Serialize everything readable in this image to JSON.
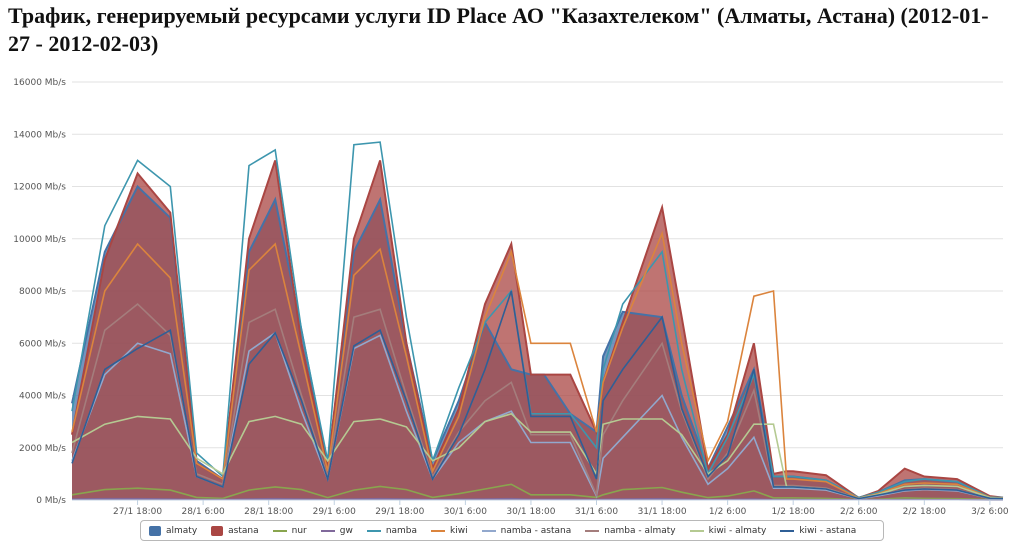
{
  "title": "Трафик, генерируемый ресурсами услуги ID Place АО \"Казахтелеком\" (Алматы, Астана) (2012-01-27 - 2012-02-03)",
  "chart_data": {
    "type": "area",
    "unit": "Mb/s",
    "ylim": [
      0,
      16000
    ],
    "yticks": [
      "0 Mb/s",
      "2000 Mb/s",
      "4000 Mb/s",
      "6000 Mb/s",
      "8000 Mb/s",
      "10000 Mb/s",
      "12000 Mb/s",
      "14000 Mb/s",
      "16000 Mb/s"
    ],
    "xlim": [
      0,
      14.2
    ],
    "xticks": [
      {
        "x": 1.0,
        "label": "27/1 18:00"
      },
      {
        "x": 2.0,
        "label": "28/1 6:00"
      },
      {
        "x": 3.0,
        "label": "28/1 18:00"
      },
      {
        "x": 4.0,
        "label": "29/1 6:00"
      },
      {
        "x": 5.0,
        "label": "29/1 18:00"
      },
      {
        "x": 6.0,
        "label": "30/1 6:00"
      },
      {
        "x": 7.0,
        "label": "30/1 18:00"
      },
      {
        "x": 8.0,
        "label": "31/1 6:00"
      },
      {
        "x": 9.0,
        "label": "31/1 18:00"
      },
      {
        "x": 10.0,
        "label": "1/2 6:00"
      },
      {
        "x": 11.0,
        "label": "1/2 18:00"
      },
      {
        "x": 12.0,
        "label": "2/2 6:00"
      },
      {
        "x": 13.0,
        "label": "2/2 18:00"
      },
      {
        "x": 14.0,
        "label": "3/2 6:00"
      }
    ],
    "grid": true,
    "legend_position": "bottom",
    "x": [
      0.0,
      0.5,
      1.0,
      1.5,
      1.9,
      2.3,
      2.7,
      3.1,
      3.5,
      3.9,
      4.3,
      4.7,
      5.1,
      5.5,
      5.9,
      6.3,
      6.7,
      7.0,
      7.2,
      7.6,
      8.0,
      8.1,
      8.4,
      9.0,
      9.3,
      9.7,
      10.0,
      10.4,
      10.7,
      10.9,
      11.0,
      11.5,
      12.0,
      12.3,
      12.7,
      13.0,
      13.5,
      14.0,
      14.2
    ],
    "series": [
      {
        "name": "almaty",
        "kind": "area",
        "color": "#4572a7",
        "values": [
          3700,
          9500,
          12000,
          10800,
          1500,
          800,
          9500,
          11500,
          6500,
          1300,
          9500,
          11500,
          6000,
          1500,
          3800,
          6800,
          5000,
          4800,
          4800,
          3300,
          2600,
          5500,
          7200,
          7000,
          4000,
          1200,
          2800,
          5000,
          900,
          900,
          900,
          750,
          90,
          300,
          750,
          800,
          700,
          120,
          90
        ]
      },
      {
        "name": "astana",
        "kind": "area",
        "color": "#aa4643",
        "values": [
          2500,
          9200,
          12500,
          11000,
          1400,
          800,
          10000,
          13000,
          6000,
          1200,
          10000,
          13000,
          6000,
          1200,
          3500,
          7500,
          9800,
          4800,
          4800,
          4800,
          2600,
          4500,
          6800,
          11200,
          7000,
          1200,
          2500,
          6000,
          1000,
          1100,
          1100,
          950,
          80,
          350,
          1200,
          900,
          800,
          150,
          90
        ]
      },
      {
        "name": "nur",
        "kind": "line",
        "color": "#89a54e",
        "values": [
          200,
          400,
          450,
          380,
          100,
          60,
          380,
          500,
          400,
          90,
          380,
          520,
          400,
          100,
          240,
          420,
          600,
          200,
          200,
          200,
          100,
          200,
          400,
          480,
          300,
          90,
          150,
          350,
          80,
          80,
          80,
          60,
          20,
          30,
          80,
          60,
          50,
          20,
          20
        ]
      },
      {
        "name": "gw",
        "kind": "line",
        "color": "#80699b",
        "values": [
          30,
          50,
          50,
          40,
          20,
          15,
          40,
          50,
          40,
          15,
          40,
          50,
          40,
          15,
          25,
          40,
          50,
          25,
          25,
          25,
          15,
          25,
          40,
          50,
          30,
          15,
          20,
          40,
          15,
          15,
          15,
          10,
          10,
          10,
          15,
          10,
          10,
          5,
          5
        ]
      },
      {
        "name": "namba",
        "kind": "line",
        "color": "#3d96ae",
        "values": [
          3400,
          10500,
          13000,
          12000,
          1800,
          900,
          12800,
          13400,
          6500,
          1500,
          13600,
          13700,
          7000,
          1500,
          4300,
          6800,
          8000,
          3300,
          3300,
          3300,
          2000,
          5000,
          7500,
          9500,
          5000,
          1000,
          2400,
          4800,
          900,
          900,
          900,
          750,
          90,
          300,
          700,
          800,
          700,
          110,
          90
        ]
      },
      {
        "name": "kiwi",
        "kind": "line",
        "color": "#db843d",
        "values": [
          2600,
          8000,
          9800,
          8500,
          1400,
          800,
          8800,
          9800,
          5500,
          1100,
          8600,
          9600,
          5500,
          1100,
          3200,
          7000,
          9500,
          6000,
          6000,
          6000,
          2600,
          4500,
          6600,
          10200,
          6000,
          1500,
          3000,
          7800,
          8000,
          800,
          800,
          700,
          70,
          250,
          600,
          650,
          600,
          100,
          80
        ]
      },
      {
        "name": "namba - astana",
        "kind": "line",
        "color": "#92a8cd",
        "values": [
          1500,
          4800,
          6000,
          5600,
          900,
          500,
          5700,
          6400,
          3400,
          800,
          5800,
          6300,
          3400,
          800,
          2200,
          3000,
          3400,
          2200,
          2200,
          2200,
          150,
          1600,
          2400,
          4000,
          2400,
          600,
          1200,
          2400,
          450,
          450,
          450,
          380,
          50,
          160,
          350,
          400,
          350,
          60,
          50
        ]
      },
      {
        "name": "namba - almaty",
        "kind": "line",
        "color": "#a47d7c",
        "values": [
          1800,
          6500,
          7500,
          6300,
          1000,
          600,
          6800,
          7300,
          4000,
          900,
          7000,
          7300,
          4000,
          900,
          2600,
          3800,
          4500,
          2500,
          2500,
          2500,
          200,
          2500,
          3800,
          6000,
          3400,
          800,
          1800,
          4200,
          550,
          550,
          550,
          460,
          60,
          200,
          400,
          450,
          400,
          70,
          60
        ]
      },
      {
        "name": "kiwi - almaty",
        "kind": "line",
        "color": "#b5ca92",
        "values": [
          2200,
          2900,
          3200,
          3100,
          1600,
          1000,
          3000,
          3200,
          2900,
          1500,
          3000,
          3100,
          2800,
          1500,
          2000,
          3000,
          3300,
          2600,
          2600,
          2600,
          1000,
          2900,
          3100,
          3100,
          2500,
          1000,
          1500,
          2900,
          2900,
          500,
          500,
          420,
          60,
          220,
          520,
          560,
          520,
          90,
          70
        ]
      },
      {
        "name": "kiwi - astana",
        "kind": "line",
        "color": "#2f5f96",
        "values": [
          1400,
          5000,
          5800,
          6500,
          900,
          500,
          5200,
          6400,
          3800,
          800,
          5900,
          6500,
          3800,
          800,
          2500,
          5000,
          8000,
          3200,
          3200,
          3200,
          800,
          3800,
          5000,
          7000,
          3500,
          900,
          1700,
          5000,
          500,
          500,
          500,
          420,
          55,
          190,
          380,
          420,
          380,
          65,
          55
        ]
      }
    ]
  }
}
